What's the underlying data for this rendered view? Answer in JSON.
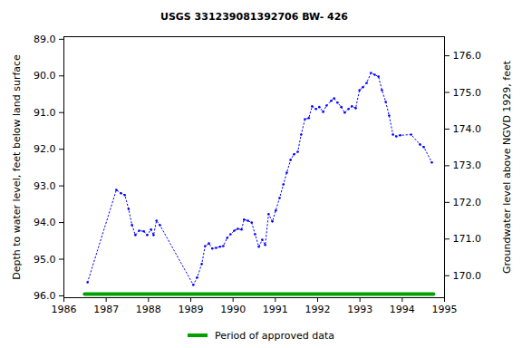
{
  "chart_data": {
    "type": "line",
    "title": "USGS 331239081392706 BW- 426",
    "y_label": "Depth to water level, feet below land surface",
    "y2_label": "Groundwater level above NGVD 1929, feet",
    "xlim": [
      1986,
      1995
    ],
    "xticks": [
      1986,
      1987,
      1988,
      1989,
      1990,
      1991,
      1992,
      1993,
      1994,
      1995
    ],
    "ylim": [
      96.05,
      88.93
    ],
    "yticks": [
      {
        "value": 89,
        "label": "89.0"
      },
      {
        "value": 90,
        "label": "90.0"
      },
      {
        "value": 91,
        "label": "91.0"
      },
      {
        "value": 92,
        "label": "92.0"
      },
      {
        "value": 93,
        "label": "93.0"
      },
      {
        "value": 94,
        "label": "94.0"
      },
      {
        "value": 95,
        "label": "95.0"
      },
      {
        "value": 96,
        "label": "96.0"
      }
    ],
    "y2lim": [
      169.4,
      176.52
    ],
    "y2ticks": [
      {
        "value": 170,
        "label": "170.0"
      },
      {
        "value": 171,
        "label": "171.0"
      },
      {
        "value": 172,
        "label": "172.0"
      },
      {
        "value": 173,
        "label": "173.0"
      },
      {
        "value": 174,
        "label": "174.0"
      },
      {
        "value": 175,
        "label": "175.0"
      },
      {
        "value": 176,
        "label": "176.0"
      }
    ],
    "grid": false,
    "legend": "bottom",
    "series": [
      {
        "color": "#0000ff",
        "line_style": "dotted",
        "marker": "dot",
        "x": [
          1986.56,
          1987.24,
          1987.35,
          1987.44,
          1987.53,
          1987.61,
          1987.69,
          1987.78,
          1987.89,
          1987.97,
          1988.06,
          1988.12,
          1988.19,
          1988.27,
          1989.06,
          1989.15,
          1989.26,
          1989.34,
          1989.43,
          1989.51,
          1989.6,
          1989.69,
          1989.77,
          1989.86,
          1989.94,
          1990.03,
          1990.11,
          1990.2,
          1990.26,
          1990.35,
          1990.44,
          1990.52,
          1990.61,
          1990.69,
          1990.76,
          1990.84,
          1990.93,
          1991.01,
          1991.1,
          1991.19,
          1991.27,
          1991.36,
          1991.44,
          1991.53,
          1991.61,
          1991.7,
          1991.79,
          1991.87,
          1991.96,
          1992.04,
          1992.13,
          1992.21,
          1992.32,
          1992.39,
          1992.47,
          1992.56,
          1992.64,
          1992.73,
          1992.81,
          1992.9,
          1992.99,
          1993.07,
          1993.16,
          1993.26,
          1993.35,
          1993.44,
          1993.52,
          1993.61,
          1993.69,
          1993.78,
          1993.86,
          1993.95,
          1994.21,
          1994.42,
          1994.51,
          1994.7
        ],
        "values": [
          95.63,
          93.11,
          93.2,
          93.25,
          93.63,
          94.07,
          94.34,
          94.22,
          94.24,
          94.34,
          94.19,
          94.34,
          93.95,
          94.07,
          95.7,
          95.5,
          95.13,
          94.64,
          94.57,
          94.71,
          94.69,
          94.66,
          94.64,
          94.42,
          94.32,
          94.22,
          94.17,
          94.19,
          93.92,
          93.95,
          94.0,
          94.32,
          94.66,
          94.47,
          94.61,
          93.77,
          93.97,
          93.67,
          93.33,
          92.96,
          92.64,
          92.29,
          92.14,
          92.07,
          91.6,
          91.18,
          91.15,
          90.83,
          90.9,
          90.85,
          90.98,
          90.81,
          90.68,
          90.61,
          90.73,
          90.85,
          91.0,
          90.9,
          90.83,
          90.88,
          90.39,
          90.31,
          90.19,
          89.92,
          89.97,
          90.02,
          90.39,
          90.71,
          91.08,
          91.6,
          91.65,
          91.62,
          91.6,
          91.87,
          91.94,
          92.36
        ]
      },
      {
        "name": "Period of approved data",
        "color": "#00a000",
        "line_style": "solid",
        "x": [
          1986.49,
          1994.74
        ],
        "values": [
          95.95,
          95.95
        ]
      }
    ]
  }
}
